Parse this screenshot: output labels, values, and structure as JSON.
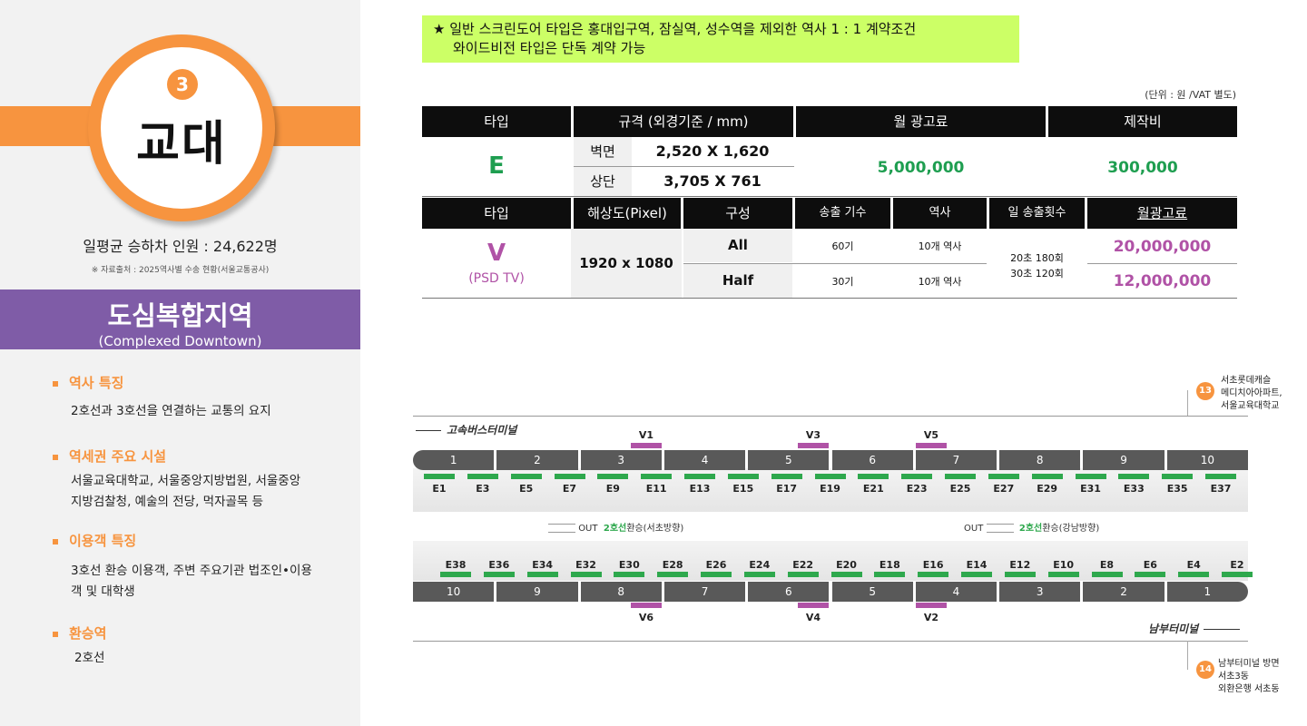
{
  "station": {
    "number": "3",
    "name": "교대",
    "ridership": "일평균 승하차 인원 : 24,622명",
    "source": "※ 자료출처 : 2025역사별 수송 현황(서울교통공사)"
  },
  "area": {
    "title": "도심복합지역",
    "subtitle": "(Complexed Downtown)"
  },
  "sections": [
    {
      "heading": "역사 특징",
      "body": [
        "2호선과 3호선을 연결하는 교통의 요지"
      ]
    },
    {
      "heading": "역세권 주요 시설",
      "body": [
        "서울교육대학교, 서울중앙지방법원, 서울중앙",
        "지방검찰청, 예술의 전당, 먹자골목 등"
      ]
    },
    {
      "heading": "이용객 특징",
      "body": [
        "3호선 환승 이용객, 주변 주요기관 법조인•이용",
        "객 및 대학생"
      ]
    },
    {
      "heading": "환승역",
      "body": [
        "2호선"
      ]
    }
  ],
  "notice": {
    "line1": "★ 일반 스크린도어 타입은 홍대입구역, 잠실역, 성수역을 제외한 역사 1 : 1 계약조건",
    "line2": "와이드비전 타입은 단독 계약 가능"
  },
  "unit_note": "(단위 : 원 /VAT 별도)",
  "table_e": {
    "headers": [
      "타입",
      "규격 (외경기준 / mm)",
      "월 광고료",
      "제작비"
    ],
    "type": "E",
    "rows": [
      {
        "label": "벽면",
        "size": "2,520 X 1,620"
      },
      {
        "label": "상단",
        "size": "3,705 X 761"
      }
    ],
    "monthly_fee": "5,000,000",
    "production_fee": "300,000"
  },
  "table_v": {
    "headers": [
      "타입",
      "해상도(Pixel)",
      "구성",
      "송출 기수",
      "역사",
      "일 송출횟수",
      "월광고료"
    ],
    "type": "V",
    "type_sub": "(PSD TV)",
    "resolution": "1920 x 1080",
    "rows": [
      {
        "config": "All",
        "units": "60기",
        "stations": "10개 역사",
        "fee": "20,000,000"
      },
      {
        "config": "Half",
        "units": "30기",
        "stations": "10개 역사",
        "fee": "12,000,000"
      }
    ],
    "daily_plays": [
      "20초 180회",
      "30초 120회"
    ]
  },
  "map": {
    "dir_top": "고속버스터미널",
    "dir_bottom": "남부터미널",
    "top_platform": [
      "1",
      "2",
      "3",
      "4",
      "5",
      "6",
      "7",
      "8",
      "9",
      "10"
    ],
    "bottom_platform": [
      "10",
      "9",
      "8",
      "7",
      "6",
      "5",
      "4",
      "3",
      "2",
      "1"
    ],
    "top_e": [
      "E1",
      "E3",
      "E5",
      "E7",
      "E9",
      "E11",
      "E13",
      "E15",
      "E17",
      "E19",
      "E21",
      "E23",
      "E25",
      "E27",
      "E29",
      "E31",
      "E33",
      "E35",
      "E37"
    ],
    "bottom_e": [
      "E38",
      "E36",
      "E34",
      "E32",
      "E30",
      "E28",
      "E26",
      "E24",
      "E22",
      "E20",
      "E18",
      "E16",
      "E14",
      "E12",
      "E10",
      "E8",
      "E6",
      "E4",
      "E2"
    ],
    "top_v": [
      "V1",
      "V3",
      "V5"
    ],
    "bottom_v": [
      "V6",
      "V4",
      "V2"
    ],
    "transfer_left": {
      "out": "OUT",
      "line": "2호선",
      "text": "환승(서초방향)"
    },
    "transfer_right": {
      "out": "OUT",
      "line": "2호선",
      "text": "환승(강남방향)"
    },
    "exit_13": {
      "num": "13",
      "lines": [
        "서초롯데캐슬",
        "메디치아아파트,",
        "서울교육대학교"
      ]
    },
    "exit_14": {
      "num": "14",
      "lines": [
        "남부터미널 방면",
        "서초3동",
        "외환은행 서초동"
      ]
    }
  },
  "colors": {
    "orange": "#f7943f",
    "purple": "#7f5ca7",
    "green": "#1e9e50",
    "pink": "#b052a6",
    "notice_bg": "#ccff66"
  }
}
